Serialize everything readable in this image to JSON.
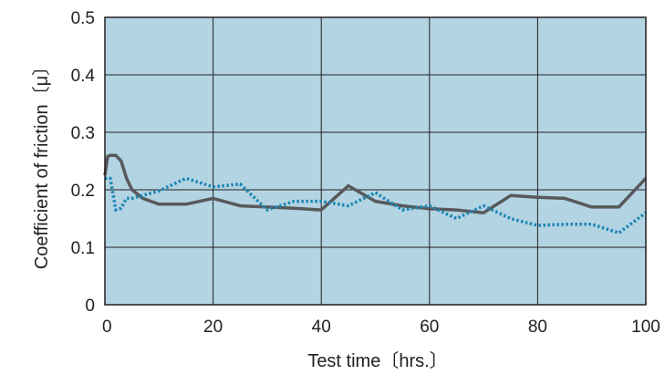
{
  "chart_data": {
    "type": "line",
    "title": "",
    "xlabel": "Test time〔hrs.〕",
    "ylabel": "Coefficient of friction〔μ〕",
    "xlim": [
      0,
      100
    ],
    "ylim": [
      0,
      0.5
    ],
    "xticks": [
      "0",
      "20",
      "40",
      "60",
      "80",
      "100"
    ],
    "yticks": [
      "0",
      "0.1",
      "0.2",
      "0.3",
      "0.4",
      "0.5"
    ],
    "grid": true,
    "legend": "none",
    "colors": {
      "plot_bg": "#b3d4e3",
      "grid": "#231f20",
      "solid": "#58595b",
      "dotted": "#1a86b3"
    },
    "series": [
      {
        "style": "solid",
        "x": [
          0,
          0.5,
          1,
          2,
          3,
          4,
          5,
          7,
          10,
          15,
          20,
          25,
          30,
          35,
          40,
          45,
          50,
          55,
          60,
          65,
          70,
          75,
          80,
          85,
          90,
          95,
          100
        ],
        "y": [
          0.225,
          0.258,
          0.26,
          0.26,
          0.25,
          0.22,
          0.2,
          0.185,
          0.175,
          0.175,
          0.185,
          0.172,
          0.17,
          0.168,
          0.165,
          0.207,
          0.18,
          0.172,
          0.167,
          0.165,
          0.16,
          0.19,
          0.187,
          0.185,
          0.17,
          0.17,
          0.22
        ]
      },
      {
        "style": "dotted",
        "x": [
          0,
          1,
          2,
          3,
          4,
          5,
          10,
          15,
          20,
          25,
          30,
          35,
          40,
          45,
          50,
          55,
          60,
          65,
          70,
          75,
          80,
          85,
          90,
          95,
          100
        ],
        "y": [
          0.22,
          0.22,
          0.165,
          0.168,
          0.185,
          0.185,
          0.198,
          0.22,
          0.205,
          0.21,
          0.165,
          0.18,
          0.18,
          0.172,
          0.195,
          0.165,
          0.172,
          0.15,
          0.172,
          0.15,
          0.138,
          0.14,
          0.14,
          0.125,
          0.16
        ]
      }
    ]
  }
}
